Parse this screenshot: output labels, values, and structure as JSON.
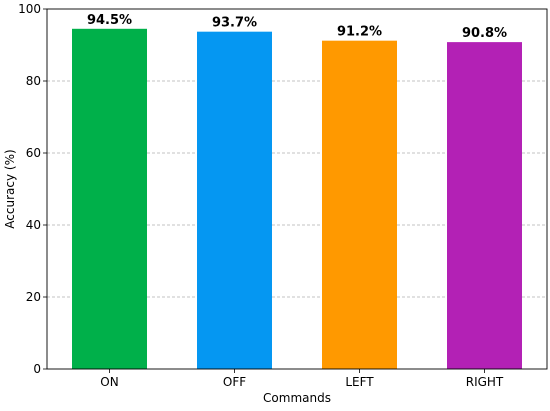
{
  "chart_data": {
    "type": "bar",
    "title": "",
    "xlabel": "Commands",
    "ylabel": "Accuracy (%)",
    "categories": [
      "ON",
      "OFF",
      "LEFT",
      "RIGHT"
    ],
    "values": [
      94.5,
      93.7,
      91.2,
      90.8
    ],
    "data_labels": [
      "94.5%",
      "93.7%",
      "91.2%",
      "90.8%"
    ],
    "colors": [
      "#00b04a",
      "#0597f2",
      "#ff9900",
      "#b321b5"
    ],
    "ylim": [
      0,
      100
    ],
    "yticks": [
      0,
      20,
      40,
      60,
      80,
      100
    ],
    "grid": "y-dashed",
    "legend": "none"
  }
}
